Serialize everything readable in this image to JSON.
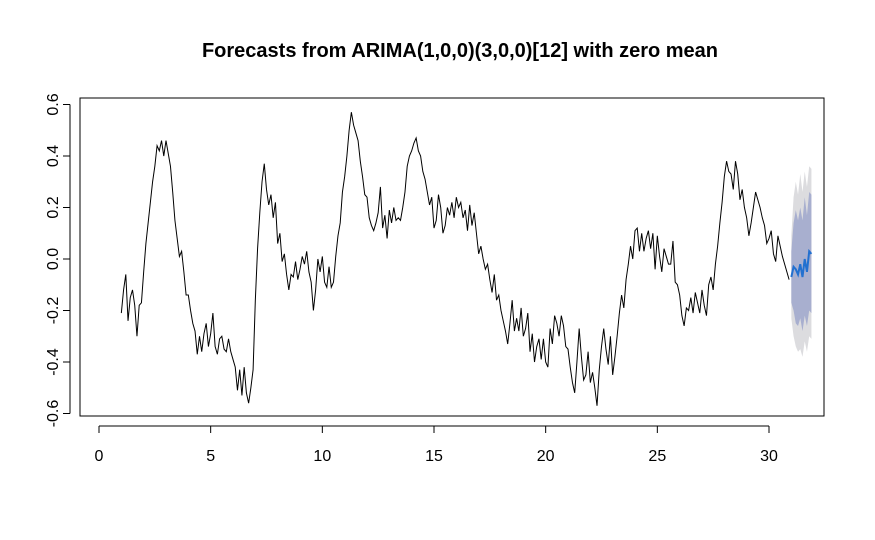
{
  "chart_data": {
    "type": "line",
    "title": "Forecasts from ARIMA(1,0,0)(3,0,0)[12] with zero mean",
    "xlabel": "",
    "ylabel": "",
    "xlim": [
      0,
      32
    ],
    "ylim": [
      -0.6,
      0.6
    ],
    "x_ticks": [
      0,
      5,
      10,
      15,
      20,
      25,
      30
    ],
    "y_ticks": [
      -0.6,
      -0.4,
      -0.2,
      0.0,
      0.2,
      0.4,
      0.6
    ],
    "x_tick_labels": [
      "0",
      "5",
      "10",
      "15",
      "20",
      "25",
      "30"
    ],
    "y_tick_labels": [
      "-0.6",
      "-0.4",
      "-0.2",
      "0.0",
      "0.2",
      "0.4",
      "0.6"
    ],
    "grid": false,
    "colors": {
      "series": "#000000",
      "forecast": "#2270d0",
      "band80": "#a8afcf",
      "band95": "#dcdcdf"
    },
    "series": [
      {
        "values": [
          [
            1.0,
            -0.21
          ],
          [
            1.1,
            -0.12
          ],
          [
            1.2,
            -0.06
          ],
          [
            1.3,
            -0.24
          ],
          [
            1.4,
            -0.15
          ],
          [
            1.5,
            -0.12
          ],
          [
            1.6,
            -0.18
          ],
          [
            1.7,
            -0.3
          ],
          [
            1.8,
            -0.18
          ],
          [
            1.9,
            -0.17
          ],
          [
            2.0,
            -0.05
          ],
          [
            2.1,
            0.06
          ],
          [
            2.2,
            0.14
          ],
          [
            2.3,
            0.22
          ],
          [
            2.4,
            0.3
          ],
          [
            2.5,
            0.36
          ],
          [
            2.6,
            0.44
          ],
          [
            2.7,
            0.42
          ],
          [
            2.8,
            0.46
          ],
          [
            2.9,
            0.4
          ],
          [
            3.0,
            0.46
          ],
          [
            3.1,
            0.41
          ],
          [
            3.2,
            0.36
          ],
          [
            3.3,
            0.26
          ],
          [
            3.4,
            0.15
          ],
          [
            3.5,
            0.08
          ],
          [
            3.6,
            0.01
          ],
          [
            3.7,
            0.03
          ],
          [
            3.8,
            -0.05
          ],
          [
            3.9,
            -0.14
          ],
          [
            4.0,
            -0.14
          ],
          [
            4.1,
            -0.2
          ],
          [
            4.2,
            -0.25
          ],
          [
            4.3,
            -0.28
          ],
          [
            4.4,
            -0.37
          ],
          [
            4.5,
            -0.3
          ],
          [
            4.6,
            -0.36
          ],
          [
            4.7,
            -0.29
          ],
          [
            4.8,
            -0.25
          ],
          [
            4.9,
            -0.34
          ],
          [
            5.0,
            -0.29
          ],
          [
            5.1,
            -0.21
          ],
          [
            5.2,
            -0.34
          ],
          [
            5.3,
            -0.37
          ],
          [
            5.4,
            -0.31
          ],
          [
            5.5,
            -0.3
          ],
          [
            5.6,
            -0.35
          ],
          [
            5.7,
            -0.36
          ],
          [
            5.8,
            -0.31
          ],
          [
            5.9,
            -0.36
          ],
          [
            6.0,
            -0.39
          ],
          [
            6.1,
            -0.42
          ],
          [
            6.2,
            -0.51
          ],
          [
            6.3,
            -0.43
          ],
          [
            6.4,
            -0.53
          ],
          [
            6.5,
            -0.42
          ],
          [
            6.6,
            -0.52
          ],
          [
            6.7,
            -0.56
          ],
          [
            6.8,
            -0.5
          ],
          [
            6.9,
            -0.43
          ],
          [
            7.0,
            -0.16
          ],
          [
            7.1,
            0.04
          ],
          [
            7.2,
            0.18
          ],
          [
            7.3,
            0.3
          ],
          [
            7.4,
            0.37
          ],
          [
            7.5,
            0.27
          ],
          [
            7.6,
            0.21
          ],
          [
            7.7,
            0.25
          ],
          [
            7.8,
            0.16
          ],
          [
            7.9,
            0.22
          ],
          [
            8.0,
            0.06
          ],
          [
            8.1,
            0.1
          ],
          [
            8.2,
            -0.01
          ],
          [
            8.3,
            0.02
          ],
          [
            8.4,
            -0.06
          ],
          [
            8.5,
            -0.12
          ],
          [
            8.6,
            -0.06
          ],
          [
            8.7,
            -0.07
          ],
          [
            8.8,
            -0.01
          ],
          [
            8.9,
            -0.08
          ],
          [
            9.0,
            -0.04
          ],
          [
            9.1,
            0.01
          ],
          [
            9.2,
            -0.02
          ],
          [
            9.3,
            0.03
          ],
          [
            9.4,
            -0.05
          ],
          [
            9.5,
            -0.09
          ],
          [
            9.6,
            -0.2
          ],
          [
            9.7,
            -0.12
          ],
          [
            9.8,
            0.0
          ],
          [
            9.9,
            -0.05
          ],
          [
            10.0,
            0.01
          ],
          [
            10.1,
            -0.09
          ],
          [
            10.2,
            -0.11
          ],
          [
            10.3,
            -0.03
          ],
          [
            10.4,
            -0.11
          ],
          [
            10.5,
            -0.09
          ],
          [
            10.6,
            0.01
          ],
          [
            10.7,
            0.09
          ],
          [
            10.8,
            0.14
          ],
          [
            10.9,
            0.26
          ],
          [
            11.0,
            0.32
          ],
          [
            11.1,
            0.4
          ],
          [
            11.2,
            0.5
          ],
          [
            11.3,
            0.57
          ],
          [
            11.4,
            0.52
          ],
          [
            11.5,
            0.49
          ],
          [
            11.6,
            0.46
          ],
          [
            11.7,
            0.38
          ],
          [
            11.8,
            0.32
          ],
          [
            11.9,
            0.25
          ],
          [
            12.0,
            0.24
          ],
          [
            12.1,
            0.16
          ],
          [
            12.2,
            0.13
          ],
          [
            12.3,
            0.11
          ],
          [
            12.4,
            0.14
          ],
          [
            12.5,
            0.18
          ],
          [
            12.6,
            0.28
          ],
          [
            12.7,
            0.12
          ],
          [
            12.8,
            0.17
          ],
          [
            12.9,
            0.08
          ],
          [
            13.0,
            0.19
          ],
          [
            13.1,
            0.14
          ],
          [
            13.2,
            0.2
          ],
          [
            13.3,
            0.15
          ],
          [
            13.4,
            0.16
          ],
          [
            13.5,
            0.15
          ],
          [
            13.6,
            0.2
          ],
          [
            13.7,
            0.26
          ],
          [
            13.8,
            0.36
          ],
          [
            13.9,
            0.4
          ],
          [
            14.0,
            0.42
          ],
          [
            14.1,
            0.45
          ],
          [
            14.2,
            0.47
          ],
          [
            14.3,
            0.42
          ],
          [
            14.4,
            0.4
          ],
          [
            14.5,
            0.34
          ],
          [
            14.6,
            0.31
          ],
          [
            14.7,
            0.26
          ],
          [
            14.8,
            0.21
          ],
          [
            14.9,
            0.24
          ],
          [
            15.0,
            0.12
          ],
          [
            15.1,
            0.15
          ],
          [
            15.2,
            0.25
          ],
          [
            15.3,
            0.2
          ],
          [
            15.4,
            0.1
          ],
          [
            15.5,
            0.13
          ],
          [
            15.6,
            0.2
          ],
          [
            15.7,
            0.17
          ],
          [
            15.8,
            0.22
          ],
          [
            15.9,
            0.16
          ],
          [
            16.0,
            0.24
          ],
          [
            16.1,
            0.2
          ],
          [
            16.2,
            0.22
          ],
          [
            16.3,
            0.16
          ],
          [
            16.4,
            0.19
          ],
          [
            16.5,
            0.11
          ],
          [
            16.6,
            0.21
          ],
          [
            16.7,
            0.13
          ],
          [
            16.8,
            0.18
          ],
          [
            16.9,
            0.1
          ],
          [
            17.0,
            0.02
          ],
          [
            17.1,
            0.05
          ],
          [
            17.2,
            0.0
          ],
          [
            17.3,
            -0.04
          ],
          [
            17.4,
            -0.02
          ],
          [
            17.5,
            -0.08
          ],
          [
            17.6,
            -0.13
          ],
          [
            17.7,
            -0.06
          ],
          [
            17.8,
            -0.16
          ],
          [
            17.9,
            -0.14
          ],
          [
            18.0,
            -0.2
          ],
          [
            18.1,
            -0.24
          ],
          [
            18.2,
            -0.28
          ],
          [
            18.3,
            -0.33
          ],
          [
            18.4,
            -0.25
          ],
          [
            18.5,
            -0.16
          ],
          [
            18.6,
            -0.28
          ],
          [
            18.7,
            -0.23
          ],
          [
            18.8,
            -0.28
          ],
          [
            18.9,
            -0.19
          ],
          [
            19.0,
            -0.3
          ],
          [
            19.1,
            -0.27
          ],
          [
            19.2,
            -0.21
          ],
          [
            19.3,
            -0.36
          ],
          [
            19.4,
            -0.29
          ],
          [
            19.5,
            -0.4
          ],
          [
            19.6,
            -0.34
          ],
          [
            19.7,
            -0.31
          ],
          [
            19.8,
            -0.39
          ],
          [
            19.9,
            -0.31
          ],
          [
            20.0,
            -0.4
          ],
          [
            20.1,
            -0.42
          ],
          [
            20.2,
            -0.27
          ],
          [
            20.3,
            -0.33
          ],
          [
            20.4,
            -0.22
          ],
          [
            20.5,
            -0.25
          ],
          [
            20.6,
            -0.3
          ],
          [
            20.7,
            -0.22
          ],
          [
            20.8,
            -0.26
          ],
          [
            20.9,
            -0.34
          ],
          [
            21.0,
            -0.35
          ],
          [
            21.1,
            -0.42
          ],
          [
            21.2,
            -0.48
          ],
          [
            21.3,
            -0.52
          ],
          [
            21.4,
            -0.4
          ],
          [
            21.5,
            -0.27
          ],
          [
            21.6,
            -0.38
          ],
          [
            21.7,
            -0.47
          ],
          [
            21.8,
            -0.45
          ],
          [
            21.9,
            -0.36
          ],
          [
            22.0,
            -0.48
          ],
          [
            22.1,
            -0.44
          ],
          [
            22.2,
            -0.5
          ],
          [
            22.3,
            -0.57
          ],
          [
            22.4,
            -0.43
          ],
          [
            22.5,
            -0.34
          ],
          [
            22.6,
            -0.27
          ],
          [
            22.7,
            -0.35
          ],
          [
            22.8,
            -0.41
          ],
          [
            22.9,
            -0.3
          ],
          [
            23.0,
            -0.45
          ],
          [
            23.1,
            -0.38
          ],
          [
            23.2,
            -0.3
          ],
          [
            23.3,
            -0.21
          ],
          [
            23.4,
            -0.14
          ],
          [
            23.5,
            -0.19
          ],
          [
            23.6,
            -0.08
          ],
          [
            23.7,
            -0.02
          ],
          [
            23.8,
            0.05
          ],
          [
            23.9,
            0.0
          ],
          [
            24.0,
            0.11
          ],
          [
            24.1,
            0.12
          ],
          [
            24.2,
            0.03
          ],
          [
            24.3,
            0.1
          ],
          [
            24.4,
            0.03
          ],
          [
            24.5,
            0.08
          ],
          [
            24.6,
            0.11
          ],
          [
            24.7,
            0.04
          ],
          [
            24.8,
            0.1
          ],
          [
            24.9,
            -0.04
          ],
          [
            25.0,
            0.09
          ],
          [
            25.1,
            0.01
          ],
          [
            25.2,
            -0.05
          ],
          [
            25.3,
            0.04
          ],
          [
            25.4,
            0.01
          ],
          [
            25.5,
            -0.02
          ],
          [
            25.6,
            -0.02
          ],
          [
            25.7,
            0.07
          ],
          [
            25.8,
            -0.09
          ],
          [
            25.9,
            -0.1
          ],
          [
            26.0,
            -0.14
          ],
          [
            26.1,
            -0.22
          ],
          [
            26.2,
            -0.26
          ],
          [
            26.3,
            -0.19
          ],
          [
            26.4,
            -0.2
          ],
          [
            26.5,
            -0.15
          ],
          [
            26.6,
            -0.21
          ],
          [
            26.7,
            -0.13
          ],
          [
            26.8,
            -0.17
          ],
          [
            26.9,
            -0.21
          ],
          [
            27.0,
            -0.12
          ],
          [
            27.1,
            -0.18
          ],
          [
            27.2,
            -0.22
          ],
          [
            27.3,
            -0.1
          ],
          [
            27.4,
            -0.07
          ],
          [
            27.5,
            -0.12
          ],
          [
            27.6,
            -0.02
          ],
          [
            27.7,
            0.05
          ],
          [
            27.8,
            0.14
          ],
          [
            27.9,
            0.22
          ],
          [
            28.0,
            0.32
          ],
          [
            28.1,
            0.38
          ],
          [
            28.2,
            0.34
          ],
          [
            28.3,
            0.33
          ],
          [
            28.4,
            0.27
          ],
          [
            28.5,
            0.38
          ],
          [
            28.6,
            0.33
          ],
          [
            28.7,
            0.23
          ],
          [
            28.8,
            0.27
          ],
          [
            28.9,
            0.2
          ],
          [
            29.0,
            0.16
          ],
          [
            29.1,
            0.09
          ],
          [
            29.2,
            0.14
          ],
          [
            29.3,
            0.2
          ],
          [
            29.4,
            0.26
          ],
          [
            29.5,
            0.23
          ],
          [
            29.6,
            0.2
          ],
          [
            29.7,
            0.16
          ],
          [
            29.8,
            0.13
          ],
          [
            29.9,
            0.06
          ],
          [
            30.0,
            0.08
          ],
          [
            30.1,
            0.11
          ],
          [
            30.2,
            0.02
          ],
          [
            30.3,
            -0.01
          ],
          [
            30.4,
            0.09
          ],
          [
            30.5,
            0.05
          ],
          [
            30.6,
            0.01
          ],
          [
            30.7,
            -0.02
          ],
          [
            30.8,
            -0.05
          ],
          [
            30.9,
            -0.08
          ]
        ]
      }
    ],
    "forecast": {
      "x": [
        31.0,
        31.1,
        31.2,
        31.3,
        31.4,
        31.5,
        31.6,
        31.7,
        31.8,
        31.9
      ],
      "mean": [
        -0.07,
        -0.03,
        -0.04,
        -0.06,
        -0.02,
        -0.07,
        0.0,
        -0.05,
        0.03,
        0.02
      ],
      "lo80": [
        -0.17,
        -0.2,
        -0.25,
        -0.26,
        -0.23,
        -0.28,
        -0.22,
        -0.26,
        -0.2,
        -0.21
      ],
      "hi80": [
        0.03,
        0.14,
        0.19,
        0.15,
        0.2,
        0.15,
        0.24,
        0.17,
        0.26,
        0.25
      ],
      "lo95": [
        -0.23,
        -0.3,
        -0.34,
        -0.36,
        -0.35,
        -0.38,
        -0.32,
        -0.36,
        -0.3,
        -0.31
      ],
      "hi95": [
        0.09,
        0.24,
        0.3,
        0.25,
        0.33,
        0.26,
        0.34,
        0.28,
        0.36,
        0.35
      ]
    }
  }
}
